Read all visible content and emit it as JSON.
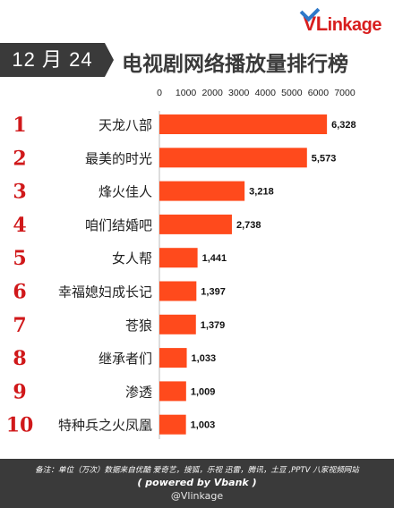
{
  "brand": {
    "logo_v": "VL",
    "logo_rest": "inkage"
  },
  "header": {
    "date": "12 月 24 日",
    "title": "电视剧网络播放量排行榜"
  },
  "chart_data": {
    "type": "bar",
    "orientation": "horizontal",
    "title": "电视剧网络播放量排行榜",
    "xlim": [
      0,
      7000
    ],
    "ticks": [
      0,
      1000,
      2000,
      3000,
      4000,
      5000,
      6000,
      7000
    ],
    "ranks": [
      "1",
      "2",
      "3",
      "4",
      "5",
      "6",
      "7",
      "8",
      "9",
      "10"
    ],
    "categories": [
      "天龙八部",
      "最美的时光",
      "烽火佳人",
      "咱们结婚吧",
      "女人帮",
      "幸福媳妇成长记",
      "苍狼",
      "继承者们",
      "渗透",
      "特种兵之火凤凰"
    ],
    "values": [
      6328,
      5573,
      3218,
      2738,
      1441,
      1397,
      1379,
      1033,
      1009,
      1003
    ],
    "value_labels": [
      "6,328",
      "5,573",
      "3,218",
      "2,738",
      "1,441",
      "1,397",
      "1,379",
      "1,033",
      "1,009",
      "1,003"
    ],
    "bar_color": "#ff4a1c",
    "rank_color": "#d0181a",
    "grid": false
  },
  "footer": {
    "note": "备注：单位（万次）数据来自优酷 爱奇艺，搜狐，乐视 迅雷，腾讯，土豆 ,PPTV 八家视频网站",
    "powered": "( powered by Vbank )",
    "handle": "@Vlinkage"
  }
}
